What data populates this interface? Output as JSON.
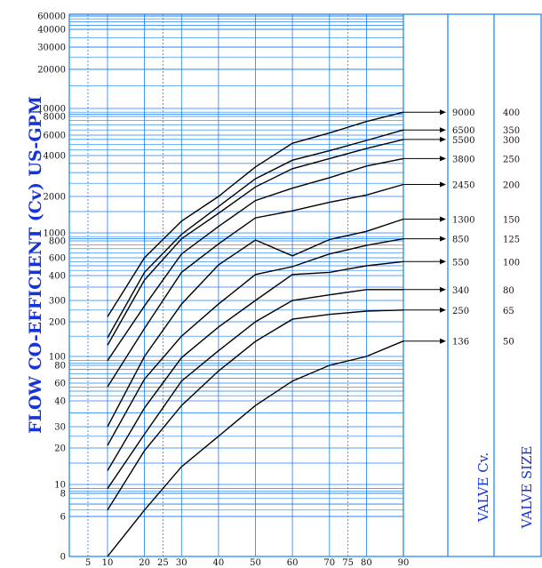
{
  "chart_data": {
    "type": "line",
    "ylabel": "FLOW CO-EFFICIENT (Cv) US-GPM",
    "y_tick_labels": [
      "0",
      "6",
      "8",
      "10",
      "20",
      "30",
      "40",
      "60",
      "80",
      "100",
      "200",
      "300",
      "400",
      "600",
      "800",
      "1000",
      "2000",
      "4000",
      "6000",
      "8000",
      "10000",
      "20000",
      "30000",
      "40000",
      "60000"
    ],
    "x_tick_labels": [
      "5",
      "10",
      "20",
      "25",
      "30",
      "40",
      "50",
      "60",
      "70",
      "75",
      "80",
      "90"
    ],
    "x": [
      10,
      20,
      30,
      40,
      50,
      60,
      70,
      80,
      90
    ],
    "series": [
      {
        "name": "9000",
        "values": [
          220,
          600,
          1250,
          2000,
          3300,
          5100,
          6200,
          7400,
          9000
        ]
      },
      {
        "name": "6500",
        "values": [
          145,
          430,
          960,
          1650,
          2700,
          3700,
          4400,
          5400,
          6500
        ]
      },
      {
        "name": "5500",
        "values": [
          125,
          380,
          850,
          1450,
          2350,
          3200,
          3800,
          4600,
          5500
        ]
      },
      {
        "name": "3800",
        "values": [
          90,
          270,
          640,
          1130,
          1850,
          2300,
          2750,
          3350,
          3800
        ]
      },
      {
        "name": "2450",
        "values": [
          55,
          175,
          430,
          760,
          1330,
          1520,
          1790,
          2050,
          2450
        ]
      },
      {
        "name": "1300",
        "values": [
          30,
          100,
          280,
          510,
          820,
          620,
          830,
          1030,
          1300
        ]
      },
      {
        "name": "850",
        "values": [
          21,
          64,
          150,
          280,
          410,
          490,
          640,
          740,
          850
        ]
      },
      {
        "name": "550",
        "values": [
          13,
          37,
          97,
          180,
          300,
          410,
          430,
          500,
          550
        ]
      },
      {
        "name": "340",
        "values": [
          9,
          26,
          62,
          112,
          200,
          300,
          320,
          340,
          340
        ]
      },
      {
        "name": "250",
        "values": [
          6.5,
          19,
          38,
          73,
          135,
          210,
          230,
          245,
          250
        ]
      },
      {
        "name": "136",
        "values": [
          0,
          6.5,
          14,
          25,
          38,
          62,
          80,
          100,
          136
        ]
      }
    ],
    "valve_cv": [
      "9000",
      "6500",
      "5500",
      "3800",
      "2450",
      "1300",
      "850",
      "550",
      "340",
      "250",
      "136"
    ],
    "valve_size": [
      "400",
      "350",
      "300",
      "250",
      "200",
      "150",
      "125",
      "100",
      "80",
      "65",
      "50"
    ],
    "valve_cv_title": "VALVE Cv.",
    "valve_size_title": "VALVE SIZE",
    "colors": {
      "grid": "#1a7ff0",
      "curve": "#000000",
      "title": "#1533d8"
    }
  }
}
